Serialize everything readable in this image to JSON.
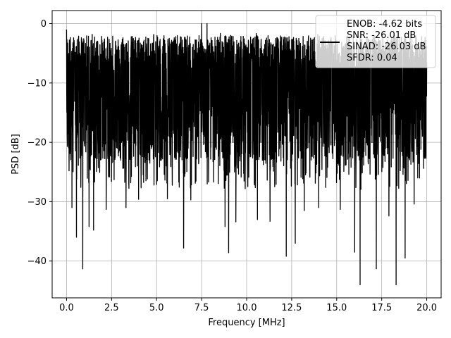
{
  "chart_data": {
    "type": "line",
    "title": "",
    "xlabel": "Frequency [MHz]",
    "ylabel": "PSD [dB]",
    "xlim": [
      -0.8,
      20.8
    ],
    "ylim": [
      -46.2,
      2.2
    ],
    "xticks": [
      0.0,
      2.5,
      5.0,
      7.5,
      10.0,
      12.5,
      15.0,
      17.5,
      20.0
    ],
    "xtick_labels": [
      "0.0",
      "2.5",
      "5.0",
      "7.5",
      "10.0",
      "12.5",
      "15.0",
      "17.5",
      "20.0"
    ],
    "yticks": [
      0,
      -10,
      -20,
      -30,
      -40
    ],
    "ytick_labels": [
      "0",
      "−10",
      "−20",
      "−30",
      "−40"
    ],
    "grid": true,
    "legend_position": "top-right",
    "legend": [
      "ENOB: -4.62 bits",
      "SNR: -26.01 dB",
      "SINAD: -26.03 dB",
      "SFDR: 0.04"
    ],
    "series": [
      {
        "color": "#000000",
        "style": "noise-like power spectral density trace spanning 0–20 MHz",
        "x_range": [
          0.0,
          20.0
        ],
        "baseline_band": [
          -20,
          -8
        ],
        "max_value": 0.0,
        "min_value": -44.0,
        "spikes": [
          {
            "x": 0.0,
            "y": -1.0
          },
          {
            "x": 7.5,
            "y": 0.0
          },
          {
            "x": 7.8,
            "y": 0.0
          }
        ],
        "dips": [
          {
            "x": 0.3,
            "y": -31.0
          },
          {
            "x": 0.55,
            "y": -36.0
          },
          {
            "x": 0.9,
            "y": -41.3
          },
          {
            "x": 1.25,
            "y": -34.2
          },
          {
            "x": 1.5,
            "y": -34.8
          },
          {
            "x": 2.2,
            "y": -31.3
          },
          {
            "x": 3.3,
            "y": -31.0
          },
          {
            "x": 4.0,
            "y": -29.6
          },
          {
            "x": 5.6,
            "y": -29.5
          },
          {
            "x": 6.5,
            "y": -37.8
          },
          {
            "x": 6.9,
            "y": -29.7
          },
          {
            "x": 7.4,
            "y": -38.3
          },
          {
            "x": 8.8,
            "y": -34.2
          },
          {
            "x": 9.0,
            "y": -38.6
          },
          {
            "x": 9.4,
            "y": -33.4
          },
          {
            "x": 10.6,
            "y": -33.0
          },
          {
            "x": 11.3,
            "y": -33.3
          },
          {
            "x": 12.2,
            "y": -39.2
          },
          {
            "x": 12.7,
            "y": -37.0
          },
          {
            "x": 13.2,
            "y": -31.5
          },
          {
            "x": 14.0,
            "y": -31.0
          },
          {
            "x": 15.2,
            "y": -31.3
          },
          {
            "x": 16.0,
            "y": -38.5
          },
          {
            "x": 16.3,
            "y": -44.0
          },
          {
            "x": 17.2,
            "y": -41.3
          },
          {
            "x": 17.9,
            "y": -32.4
          },
          {
            "x": 18.3,
            "y": -44.0
          },
          {
            "x": 18.8,
            "y": -39.5
          },
          {
            "x": 19.3,
            "y": -30.4
          },
          {
            "x": 19.5,
            "y": -26.0
          }
        ]
      }
    ]
  }
}
